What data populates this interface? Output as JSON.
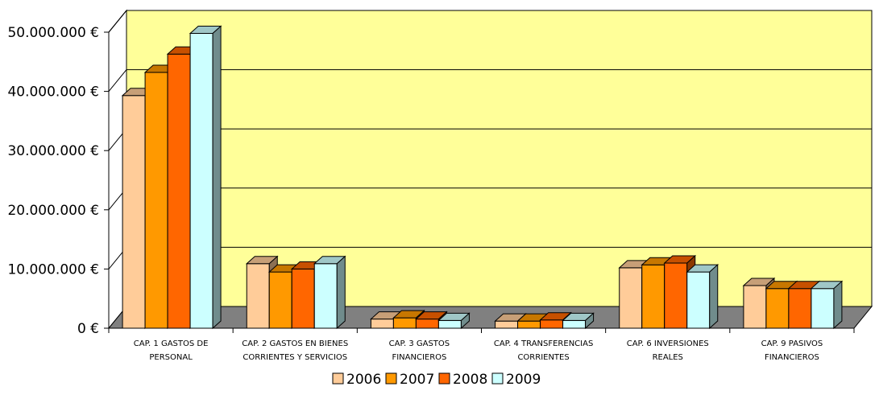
{
  "chart_data": {
    "type": "bar",
    "categories": [
      [
        "CAP. 1  GASTOS DE",
        "PERSONAL"
      ],
      [
        "CAP. 2  GASTOS EN BIENES",
        "CORRIENTES Y SERVICIOS"
      ],
      [
        "CAP. 3  GASTOS",
        "FINANCIEROS"
      ],
      [
        "CAP. 4  TRANSFERENCIAS",
        "CORRIENTES"
      ],
      [
        "CAP. 6  INVERSIONES",
        "REALES"
      ],
      [
        "CAP. 9  PASIVOS",
        "FINANCIEROS"
      ]
    ],
    "series": [
      {
        "name": "2006",
        "color": "#ffcc99",
        "values": [
          39300000,
          10900000,
          1550000,
          1200000,
          10200000,
          7200000
        ]
      },
      {
        "name": "2007",
        "color": "#ff9900",
        "values": [
          43200000,
          9500000,
          1750000,
          1200000,
          10700000,
          6700000
        ]
      },
      {
        "name": "2008",
        "color": "#ff6600",
        "values": [
          46300000,
          10000000,
          1550000,
          1400000,
          11000000,
          6700000
        ]
      },
      {
        "name": "2009",
        "color": "#ccffff",
        "values": [
          49800000,
          10900000,
          1300000,
          1300000,
          9500000,
          6700000
        ]
      }
    ],
    "yticks": [
      "0 €",
      "10.000.000 €",
      "20.000.000 €",
      "30.000.000 €",
      "40.000.000 €",
      "50.000.000 €"
    ],
    "ylim": [
      0,
      50000000
    ],
    "grid": true,
    "legend_position": "bottom",
    "wall_color": "#ffff99",
    "floor_color": "#808080"
  }
}
